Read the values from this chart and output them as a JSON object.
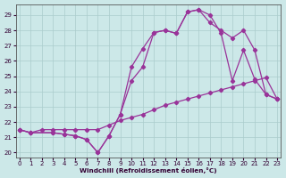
{
  "xlabel": "Windchill (Refroidissement éolien,°C)",
  "bg_color": "#cce8e8",
  "grid_color": "#aacccc",
  "line_color": "#993399",
  "xlim": [
    -0.3,
    23.3
  ],
  "ylim": [
    19.7,
    29.7
  ],
  "yticks": [
    20,
    21,
    22,
    23,
    24,
    25,
    26,
    27,
    28,
    29
  ],
  "xticks": [
    0,
    1,
    2,
    3,
    4,
    5,
    6,
    7,
    8,
    9,
    10,
    11,
    12,
    13,
    14,
    15,
    16,
    17,
    18,
    19,
    20,
    21,
    22,
    23
  ],
  "series1_x": [
    0,
    1,
    2,
    3,
    4,
    5,
    6,
    7,
    8,
    9,
    10,
    11,
    12,
    13,
    14,
    15,
    16,
    17,
    18,
    19,
    20,
    21,
    22,
    23
  ],
  "series1_y": [
    21.5,
    21.3,
    21.5,
    21.5,
    21.5,
    21.5,
    21.5,
    21.5,
    21.8,
    22.1,
    22.3,
    22.5,
    22.8,
    23.1,
    23.3,
    23.5,
    23.7,
    23.9,
    24.1,
    24.3,
    24.5,
    24.7,
    24.9,
    23.5
  ],
  "series2_x": [
    0,
    1,
    3,
    4,
    5,
    6,
    7,
    8,
    9,
    10,
    11,
    12,
    13,
    14,
    15,
    16,
    17,
    18,
    19,
    20,
    21,
    22,
    23
  ],
  "series2_y": [
    21.5,
    21.3,
    21.3,
    21.2,
    21.1,
    20.85,
    20.0,
    21.1,
    22.5,
    25.6,
    26.8,
    27.85,
    28.0,
    27.8,
    29.2,
    29.35,
    29.0,
    27.8,
    24.7,
    26.7,
    24.8,
    23.8,
    23.5
  ],
  "series3_x": [
    0,
    1,
    3,
    4,
    5,
    6,
    7,
    8,
    9,
    10,
    11,
    12,
    13,
    14,
    15,
    16,
    17,
    18,
    19,
    20,
    21,
    22,
    23
  ],
  "series3_y": [
    21.5,
    21.3,
    21.3,
    21.2,
    21.1,
    20.85,
    20.0,
    21.1,
    22.5,
    24.7,
    25.6,
    27.85,
    28.0,
    27.8,
    29.2,
    29.35,
    28.5,
    28.0,
    27.5,
    28.0,
    26.7,
    23.8,
    23.5
  ]
}
